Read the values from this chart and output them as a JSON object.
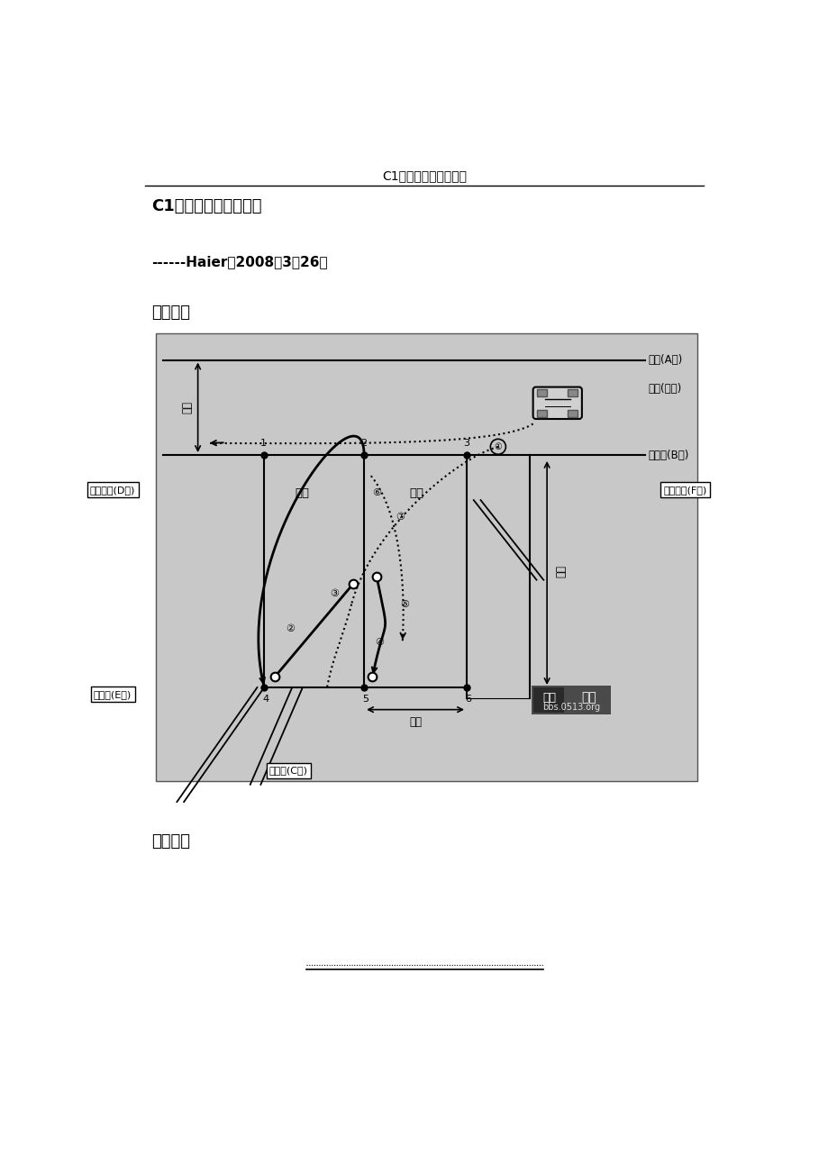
{
  "page_bg": "#ffffff",
  "header_text": "C1电子桩考图解与技巧",
  "title_text": "C1电子桩考图解与技巧",
  "subtitle_text": "------Haier于2008年3月26日",
  "section1": "一、图解",
  "section2": "二、尺寸",
  "diagram_bg": "#c8c8c8",
  "label_A": "边线(A线)",
  "label_B": "库端线(B线)",
  "label_C": "库底线(C线)",
  "label_D": "乙库边线(D线)",
  "label_E": "库中线(E线)",
  "label_F": "甲库边线(F线)",
  "label_start": "起点(车头)",
  "label_luKuan": "路宽",
  "label_zhuKuan": "桩宽",
  "label_zhuChang": "桩长",
  "label_yi": "乙库",
  "label_jia": "甲库",
  "watermark1": "濠滨论坛",
  "watermark2": "bbs.0513.org",
  "num1": "①",
  "num2": "②",
  "num3": "③",
  "num4": "④",
  "num5": "⑤",
  "num6": "⑥",
  "num7": "⑦"
}
